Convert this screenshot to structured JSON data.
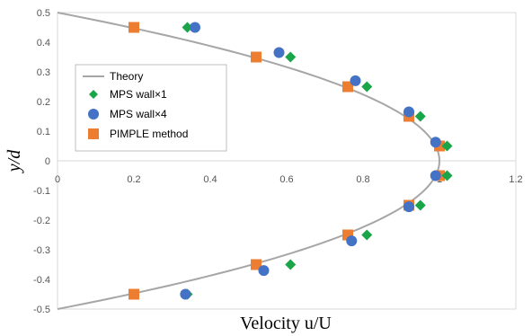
{
  "chart_data": {
    "type": "scatter",
    "title": "",
    "xlabel": "Velocity  u/U",
    "ylabel": "y/d",
    "xlim": [
      0,
      1.2
    ],
    "ylim": [
      -0.5,
      0.5
    ],
    "x_ticks": [
      "0",
      "0.2",
      "0.4",
      "0.6",
      "0.8",
      "1",
      "1.2"
    ],
    "y_ticks": [
      "0.5",
      "0.4",
      "0.3",
      "0.2",
      "0.1",
      "0",
      "-0.1",
      "-0.2",
      "-0.3",
      "-0.4",
      "-0.5"
    ],
    "grid": false,
    "legend_position": "center-left",
    "series": [
      {
        "name": "Theory",
        "kind": "line",
        "color": "#a6a6a6",
        "points": []
      },
      {
        "name": "MPS wall×1",
        "kind": "diamond",
        "color": "#1aa548",
        "points": [
          [
            0.34,
            0.45
          ],
          [
            0.61,
            0.35
          ],
          [
            0.81,
            0.25
          ],
          [
            0.95,
            0.15
          ],
          [
            1.02,
            0.05
          ],
          [
            1.02,
            -0.05
          ],
          [
            0.95,
            -0.15
          ],
          [
            0.81,
            -0.25
          ],
          [
            0.61,
            -0.35
          ],
          [
            0.34,
            -0.45
          ]
        ]
      },
      {
        "name": "MPS wall×4",
        "kind": "circle",
        "color": "#4472c4",
        "points": [
          [
            0.36,
            0.45
          ],
          [
            0.58,
            0.365
          ],
          [
            0.78,
            0.27
          ],
          [
            0.92,
            0.165
          ],
          [
            0.99,
            0.063
          ],
          [
            0.99,
            -0.05
          ],
          [
            0.92,
            -0.155
          ],
          [
            0.77,
            -0.27
          ],
          [
            0.54,
            -0.37
          ],
          [
            0.335,
            -0.45
          ]
        ]
      },
      {
        "name": "PIMPLE method",
        "kind": "square",
        "color": "#ed7d31",
        "points": [
          [
            0.2,
            0.45
          ],
          [
            0.52,
            0.35
          ],
          [
            0.76,
            0.25
          ],
          [
            0.92,
            0.15
          ],
          [
            1.0,
            0.05
          ],
          [
            1.0,
            -0.05
          ],
          [
            0.92,
            -0.15
          ],
          [
            0.76,
            -0.25
          ],
          [
            0.52,
            -0.35
          ],
          [
            0.2,
            -0.45
          ]
        ]
      }
    ]
  }
}
